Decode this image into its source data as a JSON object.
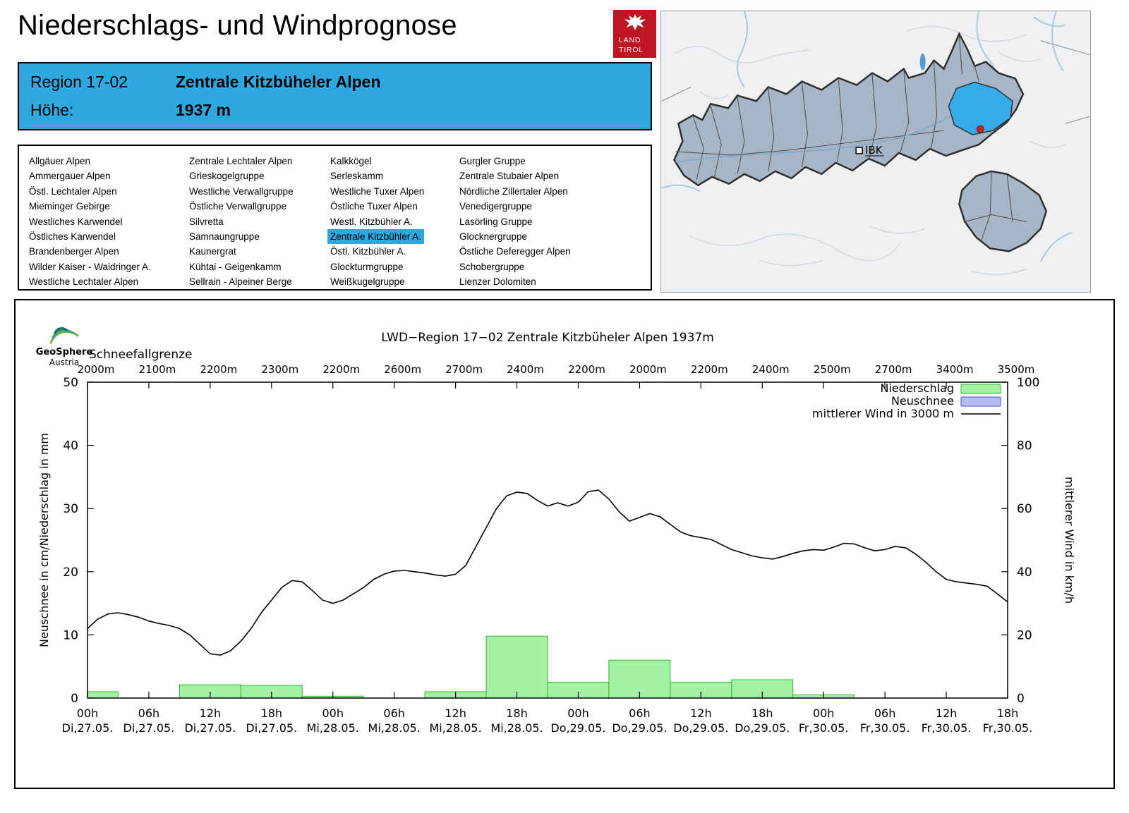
{
  "colors": {
    "accent": "#2FA8E0",
    "land_red": "#BE1522",
    "map_highlight": "#35ACE8",
    "map_region_fill": "#A7B6C6"
  },
  "header": {
    "title": "Niederschlags- und Windprognose",
    "logo_line1": "LAND",
    "logo_line2": "TIROL"
  },
  "region_header": {
    "region_label": "Region 17-02",
    "region_name": "Zentrale Kitzbüheler Alpen",
    "altitude_label": "Höhe:",
    "altitude_value": "1937 m"
  },
  "map": {
    "city_label": "IBK"
  },
  "region_list": {
    "selected": "Zentrale Kitzbühler A.",
    "columns": [
      [
        "Allgäuer Alpen",
        "Ammergauer Alpen",
        "Östl. Lechtaler Alpen",
        "Mieminger Gebirge",
        "Westliches Karwendel",
        "Östliches Karwendel",
        "Brandenberger Alpen",
        "Wilder Kaiser - Waidringer A.",
        "Westliche Lechtaler Alpen"
      ],
      [
        "Zentrale Lechtaler Alpen",
        "Grieskogelgruppe",
        "Westliche Verwallgruppe",
        "Östliche Verwallgruppe",
        "Silvretta",
        "Samnaungruppe",
        "Kaunergrat",
        "Kühtai - Geigenkamm",
        "Sellrain - Alpeiner Berge"
      ],
      [
        "Kalkkögel",
        "Serleskamm",
        "Westliche Tuxer Alpen",
        "Östliche Tuxer Alpen",
        "Westl. Kitzbühler A.",
        "Zentrale Kitzbühler A.",
        "Östl. Kitzbühler A.",
        "Glockturmgruppe",
        "Weißkugelgruppe"
      ],
      [
        "Gurgler Gruppe",
        "Zentrale Stubaier Alpen",
        "Nördliche Zillertaler Alpen",
        "Venedigergruppe",
        "Lasörling Gruppe",
        "Glocknergruppe",
        "Östliche Deferegger Alpen",
        "Schobergruppe",
        "Lienzer Dolomiten"
      ]
    ]
  },
  "chart_data": {
    "type": "bar+line",
    "title": "LWD−Region 17−02 Zentrale Kitzbüheler Alpen 1937m",
    "branding": {
      "logo_line1": "GeoSphere",
      "logo_line2": "Austria"
    },
    "snowline_label": "Schneefallgrenze",
    "snowline_values": [
      "2000m",
      "2100m",
      "2200m",
      "2300m",
      "2200m",
      "2600m",
      "2700m",
      "2400m",
      "2200m",
      "2000m",
      "2200m",
      "2400m",
      "2500m",
      "2700m",
      "3400m",
      "3500m"
    ],
    "x_tick_hours": [
      "00h",
      "06h",
      "12h",
      "18h",
      "00h",
      "06h",
      "12h",
      "18h",
      "00h",
      "06h",
      "12h",
      "18h",
      "00h",
      "06h",
      "12h",
      "18h"
    ],
    "x_tick_dates": [
      "Di,27.05.",
      "Di,27.05.",
      "Di,27.05.",
      "Di,27.05.",
      "Mi,28.05.",
      "Mi,28.05.",
      "Mi,28.05.",
      "Mi,28.05.",
      "Do,29.05.",
      "Do,29.05.",
      "Do,29.05.",
      "Do,29.05.",
      "Fr,30.05.",
      "Fr,30.05.",
      "Fr,30.05.",
      "Fr,30.05."
    ],
    "x_range_hours": [
      0,
      90
    ],
    "ylabel_left": "Neuschnee in cm/Niederschlag in mm",
    "ylabel_right": "mittlerer Wind in km/h",
    "ylim_left": [
      0,
      50
    ],
    "ylim_right": [
      0,
      100
    ],
    "yticks_left": [
      0,
      10,
      20,
      30,
      40,
      50
    ],
    "yticks_right": [
      0,
      20,
      40,
      60,
      80,
      100
    ],
    "grid": false,
    "legend_position": "top-right",
    "legend": [
      {
        "label": "Niederschlag",
        "sample": "box",
        "fill": "#A4F0A4",
        "stroke": "#30B830"
      },
      {
        "label": "Neuschnee",
        "sample": "box",
        "fill": "#B4BCF8",
        "stroke": "#4850D8"
      },
      {
        "label": "mittlerer Wind in 3000 m",
        "sample": "line",
        "stroke": "#000000"
      }
    ],
    "series": [
      {
        "name": "Niederschlag",
        "type": "bar",
        "unit": "mm",
        "axis": "left",
        "fill": "#A4F0A4",
        "stroke": "#30B830",
        "bars": [
          {
            "from_h": 0,
            "to_h": 3,
            "value": 1.0
          },
          {
            "from_h": 9,
            "to_h": 15,
            "value": 2.1
          },
          {
            "from_h": 15,
            "to_h": 21,
            "value": 2.0
          },
          {
            "from_h": 21,
            "to_h": 27,
            "value": 0.3
          },
          {
            "from_h": 33,
            "to_h": 39,
            "value": 1.0
          },
          {
            "from_h": 39,
            "to_h": 45,
            "value": 9.8
          },
          {
            "from_h": 45,
            "to_h": 51,
            "value": 2.5
          },
          {
            "from_h": 51,
            "to_h": 57,
            "value": 6.0
          },
          {
            "from_h": 57,
            "to_h": 63,
            "value": 2.5
          },
          {
            "from_h": 63,
            "to_h": 69,
            "value": 2.9
          },
          {
            "from_h": 69,
            "to_h": 75,
            "value": 0.5
          }
        ]
      },
      {
        "name": "Neuschnee",
        "type": "bar",
        "unit": "cm",
        "axis": "left",
        "fill": "#B4BCF8",
        "stroke": "#4850D8",
        "bars": []
      },
      {
        "name": "mittlerer Wind in 3000 m",
        "type": "line",
        "unit": "km/h",
        "axis": "right",
        "stroke": "#000000",
        "start_hour": 0,
        "step_h": 1,
        "values": [
          22,
          25,
          26.6,
          27,
          26.4,
          25.6,
          24.4,
          23.6,
          23,
          22,
          20,
          17,
          14,
          13.6,
          15,
          18,
          22,
          27,
          31,
          35,
          37.2,
          36.8,
          34,
          31,
          30,
          31,
          33,
          35,
          37.6,
          39.2,
          40.2,
          40.4,
          40,
          39.6,
          39,
          38.6,
          39.2,
          42,
          48,
          54,
          60,
          64,
          65.2,
          64.8,
          62.6,
          60.8,
          61.8,
          60.8,
          62,
          65.4,
          65.8,
          63,
          59,
          56,
          57.2,
          58.4,
          57.4,
          55,
          52.6,
          51.4,
          50.8,
          50.2,
          48.6,
          47,
          46,
          45,
          44.4,
          44,
          44.8,
          45.8,
          46.6,
          47,
          46.8,
          47.8,
          49,
          48.8,
          47.6,
          46.6,
          47,
          48,
          47.6,
          45.6,
          43,
          40,
          37.6,
          36.8,
          36.4,
          36,
          35.4,
          33,
          30.4
        ]
      }
    ]
  }
}
